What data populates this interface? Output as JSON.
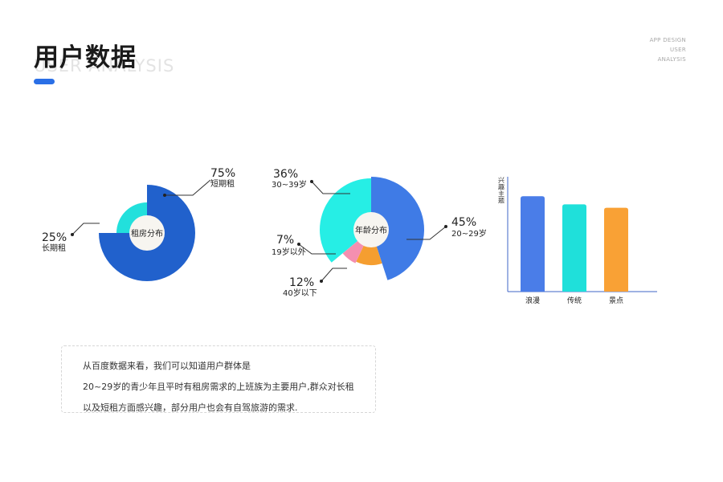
{
  "header": {
    "title": "用户数据",
    "subtitle_en": "USER ANALYSIS",
    "top_right": [
      "APP DESIGN",
      "USER",
      "ANALYSIS"
    ]
  },
  "chart_data": [
    {
      "type": "pie",
      "center_label": "租房分布",
      "slices": [
        {
          "label": "短期租",
          "value": 75,
          "pct_text": "75%",
          "color": "#2161cc"
        },
        {
          "label": "长期租",
          "value": 25,
          "pct_text": "25%",
          "color": "#22e0dc"
        }
      ]
    },
    {
      "type": "pie",
      "center_label": "年龄分布",
      "slices": [
        {
          "label": "20~29岁",
          "value": 45,
          "pct_text": "45%",
          "color": "#3f7be6"
        },
        {
          "label": "40岁以下",
          "value": 12,
          "pct_text": "12%",
          "color": "#f59e30"
        },
        {
          "label": "19岁以外",
          "value": 7,
          "pct_text": "7%",
          "color": "#f48fb0"
        },
        {
          "label": "30~39岁",
          "value": 36,
          "pct_text": "36%",
          "color": "#26eee5"
        }
      ]
    },
    {
      "type": "bar",
      "ylabel": "兴趣主题",
      "categories": [
        "浪漫",
        "传统",
        "景点"
      ],
      "values": [
        0.83,
        0.76,
        0.73
      ],
      "colors": [
        "#4a7de8",
        "#1fe0da",
        "#f9a135"
      ],
      "ylim": [
        0,
        1
      ]
    }
  ],
  "note": {
    "lines": [
      "从百度数据来看，我们可以知道用户群体是",
      "20~29岁的青少年且平时有租房需求的上班族为主要用户,群众对长租",
      "以及短租方面感兴趣，部分用户也会有自驾旅游的需求."
    ]
  }
}
